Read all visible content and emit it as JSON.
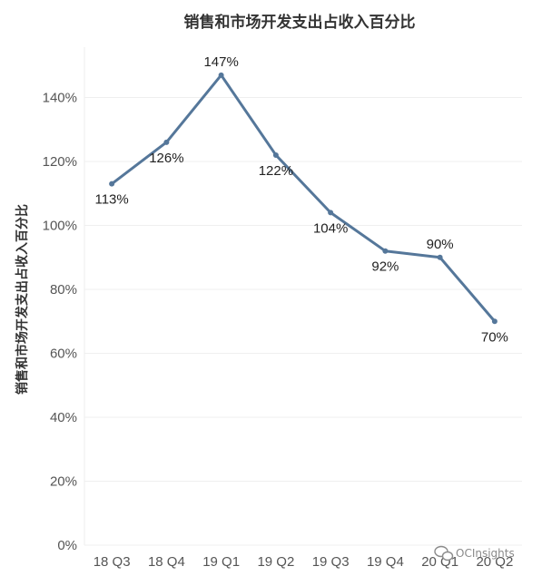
{
  "chart_data": {
    "type": "line",
    "title": "销售和市场开发支出占收入百分比",
    "xlabel": "",
    "ylabel": "销售和市场开发支出占收入百分比",
    "categories": [
      "18 Q3",
      "18 Q4",
      "19 Q1",
      "19 Q2",
      "19 Q3",
      "19 Q4",
      "20 Q1",
      "20 Q2"
    ],
    "series": [
      {
        "values": [
          113,
          126,
          147,
          122,
          104,
          92,
          90,
          70
        ],
        "labels": [
          "113%",
          "126%",
          "147%",
          "122%",
          "104%",
          "92%",
          "90%",
          "70%"
        ],
        "color": "#55779a"
      }
    ],
    "yticks": [
      "0%",
      "20%",
      "40%",
      "60%",
      "80%",
      "100%",
      "120%",
      "140%"
    ],
    "ylim": [
      0,
      155
    ],
    "grid": true,
    "legend": "none"
  },
  "watermark": {
    "text": "OCInsights",
    "icon": "wechat-icon"
  }
}
